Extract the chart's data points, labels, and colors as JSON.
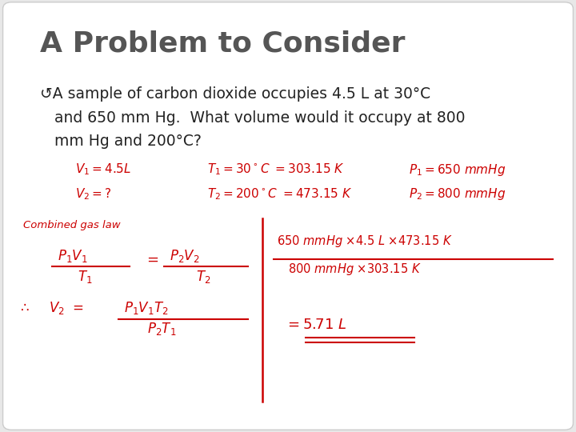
{
  "background_color": "#e8e8e8",
  "slide_bg": "#ffffff",
  "title": "A Problem to Consider",
  "title_color": "#555555",
  "title_fontsize": 26,
  "bullet_fontsize": 13.5,
  "bullet_color": "#222222",
  "red_color": "#cc0000",
  "bullet_line1": "↺A sample of carbon dioxide occupies 4.5 L at 30°C",
  "bullet_line2": "   and 650 mm Hg.  What volume would it occupy at 800",
  "bullet_line3": "   mm Hg and 200°C?",
  "var1a": "$V_1 = 4.5$L",
  "var1b": "$T_1 = 30^\\circ$C $= 303.15$ K",
  "var1c": "$P_1 = 650$ mmHg",
  "var2a": "$V_2 = ?$",
  "var2b": "$T_2 = 200^\\circ$C $= 473.15$ K",
  "var2c": "$P_2 = 800$ mmHg",
  "combined_label": "Combined gas law",
  "calc_num": "$650$ mmHg $\\times 4.5$ L $\\times 473.15$ K",
  "calc_den": "$800$ mmHg $\\times 303.15$ K",
  "calc_result": "$= 5.71$ L"
}
